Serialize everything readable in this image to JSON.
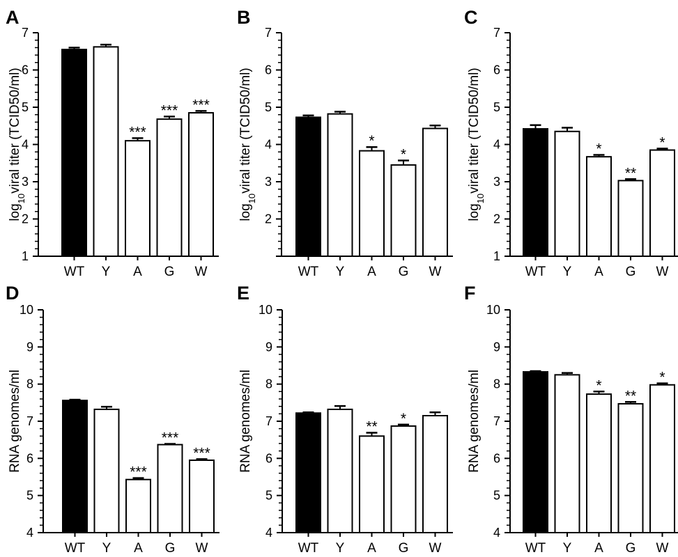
{
  "chart_data": [
    {
      "panel": "A",
      "type": "bar",
      "categories": [
        "WT",
        "Y",
        "A",
        "G",
        "W"
      ],
      "values": [
        6.55,
        6.62,
        4.1,
        4.68,
        4.85
      ],
      "errors": [
        0.05,
        0.06,
        0.07,
        0.07,
        0.05
      ],
      "significance": [
        "",
        "",
        "***",
        "***",
        "***"
      ],
      "ylabel_main": "log",
      "ylabel_sub": "10",
      "ylabel_rest": "viral titer (TCID50/ml)",
      "ylim": [
        1,
        7
      ],
      "yticks": [
        "1",
        "2",
        "3",
        "4",
        "5",
        "6",
        "7"
      ],
      "bar_colors": [
        "#000000",
        "#ffffff",
        "#ffffff",
        "#ffffff",
        "#ffffff"
      ]
    },
    {
      "panel": "B",
      "type": "bar",
      "categories": [
        "WT",
        "Y",
        "A",
        "G",
        "W"
      ],
      "values": [
        4.73,
        4.82,
        3.83,
        3.45,
        4.43
      ],
      "errors": [
        0.05,
        0.06,
        0.1,
        0.12,
        0.08
      ],
      "significance": [
        "",
        "",
        "*",
        "*",
        ""
      ],
      "ylabel_main": "log",
      "ylabel_sub": "10",
      "ylabel_rest": "viral titer (TCID50/ml)",
      "ylim": [
        1,
        7
      ],
      "yticks": [
        "2",
        "3",
        "4",
        "5",
        "6",
        "7"
      ],
      "bar_colors": [
        "#000000",
        "#ffffff",
        "#ffffff",
        "#ffffff",
        "#ffffff"
      ]
    },
    {
      "panel": "C",
      "type": "bar",
      "categories": [
        "WT",
        "Y",
        "A",
        "G",
        "W"
      ],
      "values": [
        4.42,
        4.35,
        3.67,
        3.03,
        3.85
      ],
      "errors": [
        0.1,
        0.1,
        0.05,
        0.04,
        0.04
      ],
      "significance": [
        "",
        "",
        "*",
        "**",
        "*"
      ],
      "ylabel_main": "log",
      "ylabel_sub": "10",
      "ylabel_rest": "viral titer (TCID50/ml)",
      "ylim": [
        1,
        7
      ],
      "yticks": [
        "1",
        "2",
        "3",
        "4",
        "5",
        "6",
        "7"
      ],
      "bar_colors": [
        "#000000",
        "#ffffff",
        "#ffffff",
        "#ffffff",
        "#ffffff"
      ]
    },
    {
      "panel": "D",
      "type": "bar",
      "categories": [
        "WT",
        "Y",
        "A",
        "G",
        "W"
      ],
      "values": [
        7.56,
        7.32,
        5.43,
        6.37,
        5.95
      ],
      "errors": [
        0.02,
        0.07,
        0.04,
        0.02,
        0.03
      ],
      "significance": [
        "",
        "",
        "***",
        "***",
        "***"
      ],
      "ylabel_main": "RNA genomes/ml",
      "ylabel_sub": "",
      "ylabel_rest": "",
      "ylim": [
        4,
        10
      ],
      "yticks": [
        "4",
        "5",
        "6",
        "7",
        "8",
        "9",
        "10"
      ],
      "bar_colors": [
        "#000000",
        "#ffffff",
        "#ffffff",
        "#ffffff",
        "#ffffff"
      ]
    },
    {
      "panel": "E",
      "type": "bar",
      "categories": [
        "WT",
        "Y",
        "A",
        "G",
        "W"
      ],
      "values": [
        7.22,
        7.32,
        6.6,
        6.87,
        7.15
      ],
      "errors": [
        0.02,
        0.09,
        0.09,
        0.04,
        0.09
      ],
      "significance": [
        "",
        "",
        "**",
        "*",
        ""
      ],
      "ylabel_main": "RNA genomes/ml",
      "ylabel_sub": "",
      "ylabel_rest": "",
      "ylim": [
        4,
        10
      ],
      "yticks": [
        "4",
        "5",
        "6",
        "7",
        "8",
        "9",
        "10"
      ],
      "bar_colors": [
        "#000000",
        "#ffffff",
        "#ffffff",
        "#ffffff",
        "#ffffff"
      ]
    },
    {
      "panel": "F",
      "type": "bar",
      "categories": [
        "WT",
        "Y",
        "A",
        "G",
        "W"
      ],
      "values": [
        8.33,
        8.25,
        7.73,
        7.47,
        7.98
      ],
      "errors": [
        0.02,
        0.05,
        0.07,
        0.05,
        0.04
      ],
      "significance": [
        "",
        "",
        "*",
        "**",
        "*"
      ],
      "ylabel_main": "RNA genomes/ml",
      "ylabel_sub": "",
      "ylabel_rest": "",
      "ylim": [
        4,
        10
      ],
      "yticks": [
        "4",
        "5",
        "6",
        "7",
        "8",
        "9",
        "10"
      ],
      "bar_colors": [
        "#000000",
        "#ffffff",
        "#ffffff",
        "#ffffff",
        "#ffffff"
      ]
    }
  ]
}
